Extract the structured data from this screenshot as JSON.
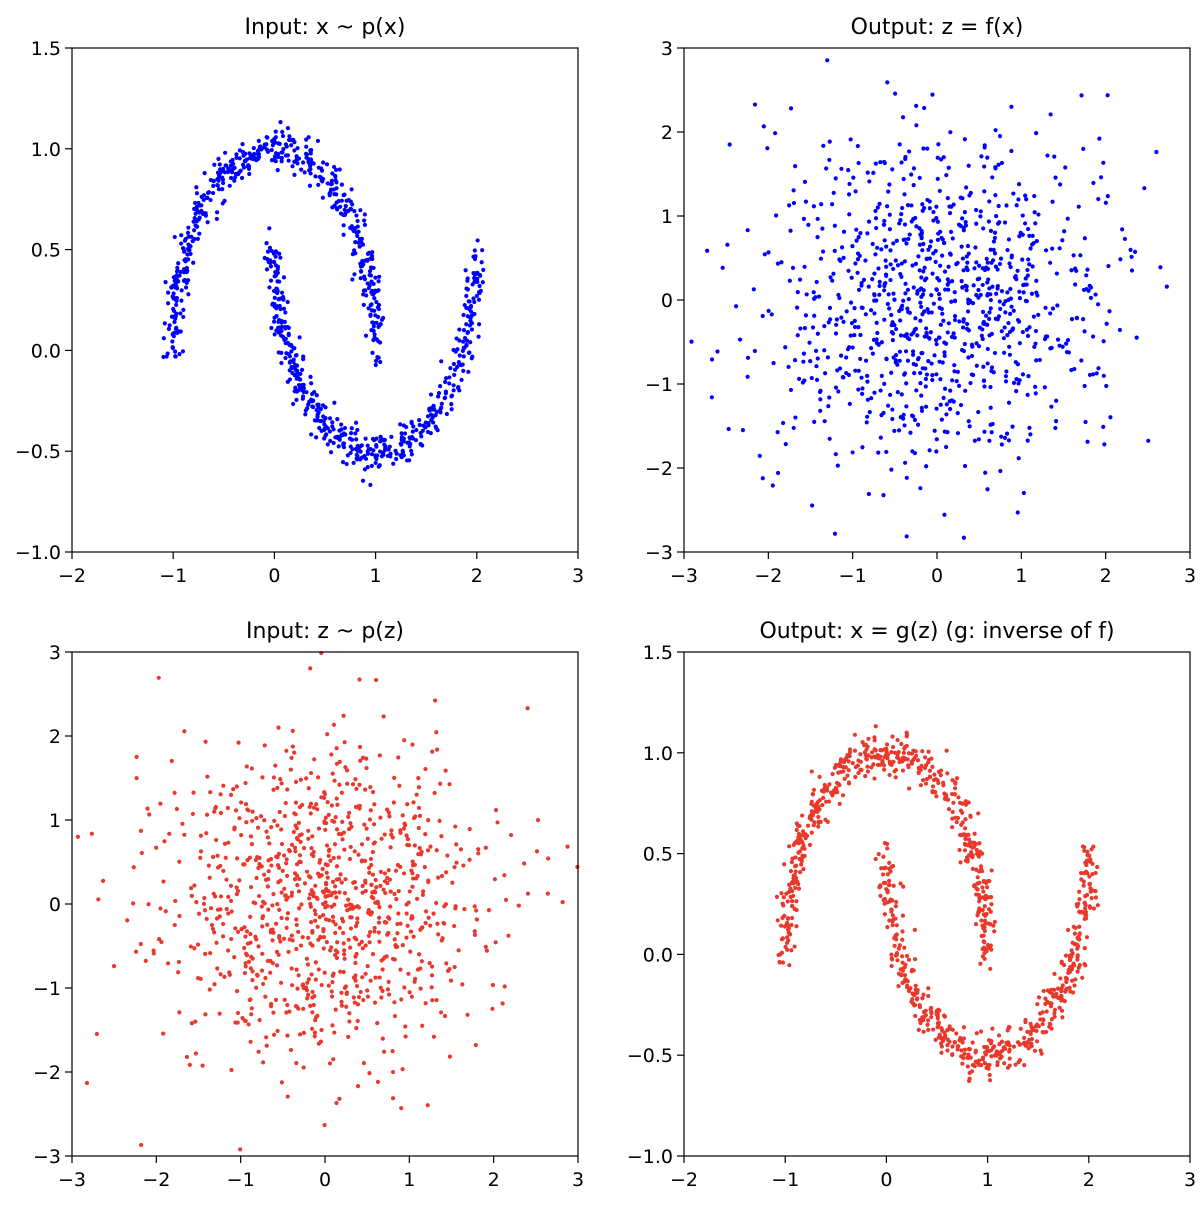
{
  "figure": {
    "colors": {
      "blue": "#0000ff",
      "red": "#e8392c"
    }
  },
  "chart_data": [
    {
      "type": "scatter",
      "title": "Input: x ~ p(x)",
      "distribution": "two_moons",
      "color": "blue",
      "n_points": 1000,
      "noise": 0.05,
      "xlim": [
        -2,
        3
      ],
      "ylim": [
        -1.0,
        1.5
      ],
      "xticks": [
        -2,
        -1,
        0,
        1,
        2,
        3
      ],
      "xtick_labels": [
        "−2",
        "−1",
        "0",
        "1",
        "2",
        "3"
      ],
      "yticks": [
        -1.0,
        -0.5,
        0.0,
        0.5,
        1.0,
        1.5
      ],
      "ytick_labels": [
        "−1.0",
        "−0.5",
        "0.0",
        "0.5",
        "1.0",
        "1.5"
      ],
      "xlabel": "",
      "ylabel": "",
      "grid": false
    },
    {
      "type": "scatter",
      "title": "Output: z = f(x)",
      "distribution": "standard_normal_2d",
      "color": "blue",
      "n_points": 1000,
      "xlim": [
        -3,
        3
      ],
      "ylim": [
        -3,
        3
      ],
      "xticks": [
        -3,
        -2,
        -1,
        0,
        1,
        2,
        3
      ],
      "xtick_labels": [
        "−3",
        "−2",
        "−1",
        "0",
        "1",
        "2",
        "3"
      ],
      "yticks": [
        -3,
        -2,
        -1,
        0,
        1,
        2,
        3
      ],
      "ytick_labels": [
        "−3",
        "−2",
        "−1",
        "0",
        "1",
        "2",
        "3"
      ],
      "xlabel": "",
      "ylabel": "",
      "grid": false
    },
    {
      "type": "scatter",
      "title": "Input: z ~ p(z)",
      "distribution": "standard_normal_2d",
      "color": "red",
      "n_points": 1000,
      "xlim": [
        -3,
        3
      ],
      "ylim": [
        -3,
        3
      ],
      "xticks": [
        -3,
        -2,
        -1,
        0,
        1,
        2,
        3
      ],
      "xtick_labels": [
        "−3",
        "−2",
        "−1",
        "0",
        "1",
        "2",
        "3"
      ],
      "yticks": [
        -3,
        -2,
        -1,
        0,
        1,
        2,
        3
      ],
      "ytick_labels": [
        "−3",
        "−2",
        "−1",
        "0",
        "1",
        "2",
        "3"
      ],
      "xlabel": "",
      "ylabel": "",
      "grid": false
    },
    {
      "type": "scatter",
      "title": "Output: x = g(z) (g: inverse of f)",
      "distribution": "two_moons",
      "color": "red",
      "n_points": 1000,
      "noise": 0.05,
      "xlim": [
        -2,
        3
      ],
      "ylim": [
        -1.0,
        1.5
      ],
      "xticks": [
        -2,
        -1,
        0,
        1,
        2,
        3
      ],
      "xtick_labels": [
        "−2",
        "−1",
        "0",
        "1",
        "2",
        "3"
      ],
      "yticks": [
        -1.0,
        -0.5,
        0.0,
        0.5,
        1.0,
        1.5
      ],
      "ytick_labels": [
        "−1.0",
        "−0.5",
        "0.0",
        "0.5",
        "1.0",
        "1.5"
      ],
      "xlabel": "",
      "ylabel": "",
      "grid": false
    }
  ]
}
